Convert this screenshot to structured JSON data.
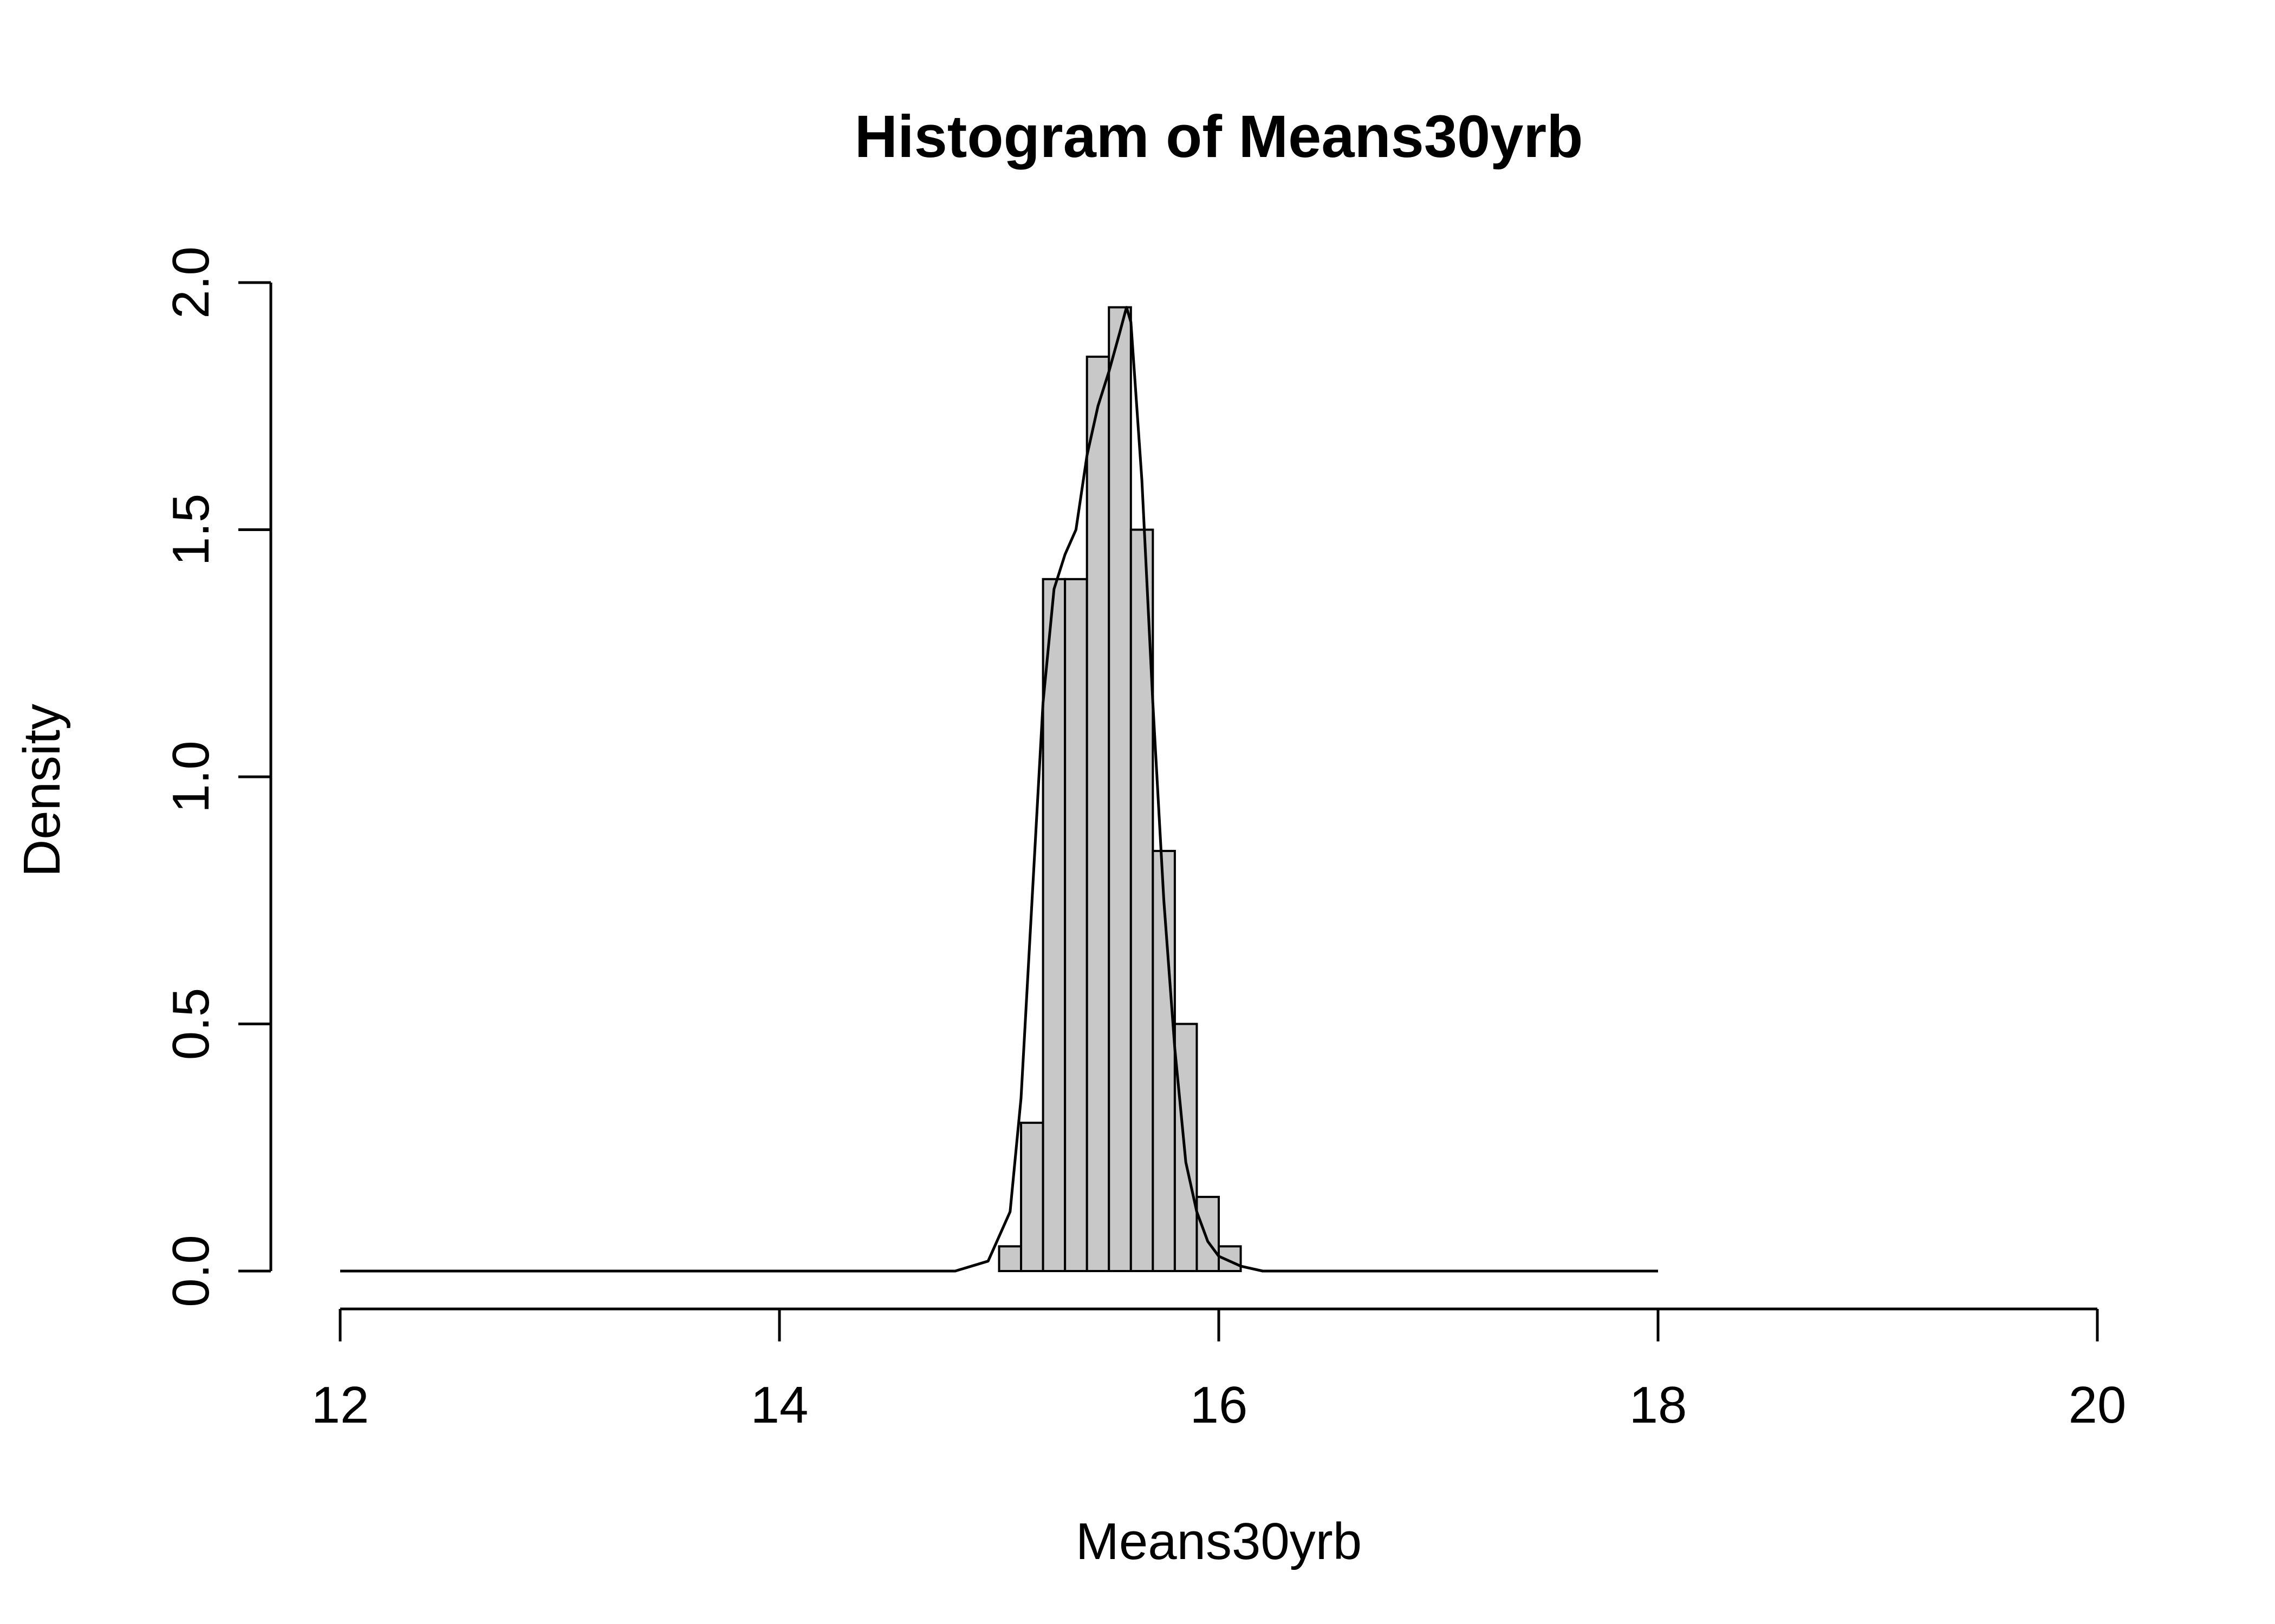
{
  "chart_data": {
    "type": "bar",
    "title": "Histogram of Means30yrb",
    "xlabel": "Means30yrb",
    "ylabel": "Density",
    "xlim": [
      12,
      20
    ],
    "ylim": [
      0,
      2.0
    ],
    "x_ticks": [
      12,
      14,
      16,
      18,
      20
    ],
    "x_tick_labels": [
      "12",
      "14",
      "16",
      "18",
      "20"
    ],
    "y_ticks": [
      0,
      0.5,
      1.0,
      1.5,
      2.0
    ],
    "y_tick_labels": [
      "0.0",
      "0.5",
      "1.0",
      "1.5",
      "2.0"
    ],
    "bin_width": 0.1,
    "bins": [
      {
        "x0": 15.0,
        "x1": 15.1,
        "density": 0.05
      },
      {
        "x0": 15.1,
        "x1": 15.2,
        "density": 0.3
      },
      {
        "x0": 15.2,
        "x1": 15.3,
        "density": 1.4
      },
      {
        "x0": 15.3,
        "x1": 15.4,
        "density": 1.4
      },
      {
        "x0": 15.4,
        "x1": 15.5,
        "density": 1.85
      },
      {
        "x0": 15.5,
        "x1": 15.6,
        "density": 1.95
      },
      {
        "x0": 15.6,
        "x1": 15.7,
        "density": 1.5
      },
      {
        "x0": 15.7,
        "x1": 15.8,
        "density": 0.85
      },
      {
        "x0": 15.8,
        "x1": 15.9,
        "density": 0.5
      },
      {
        "x0": 15.9,
        "x1": 16.0,
        "density": 0.15
      },
      {
        "x0": 16.0,
        "x1": 16.1,
        "density": 0.05
      }
    ],
    "density_curve": {
      "x": [
        12.0,
        14.8,
        14.95,
        15.05,
        15.1,
        15.15,
        15.2,
        15.25,
        15.3,
        15.35,
        15.4,
        15.45,
        15.5,
        15.55,
        15.58,
        15.6,
        15.65,
        15.7,
        15.75,
        15.8,
        15.85,
        15.9,
        15.95,
        16.0,
        16.1,
        16.2,
        18.0
      ],
      "y": [
        0.0,
        0.0,
        0.02,
        0.12,
        0.35,
        0.75,
        1.15,
        1.38,
        1.45,
        1.5,
        1.65,
        1.75,
        1.82,
        1.9,
        1.95,
        1.92,
        1.6,
        1.15,
        0.75,
        0.45,
        0.22,
        0.12,
        0.06,
        0.03,
        0.01,
        0.0,
        0.0
      ]
    },
    "grid": false,
    "legend": "none"
  }
}
